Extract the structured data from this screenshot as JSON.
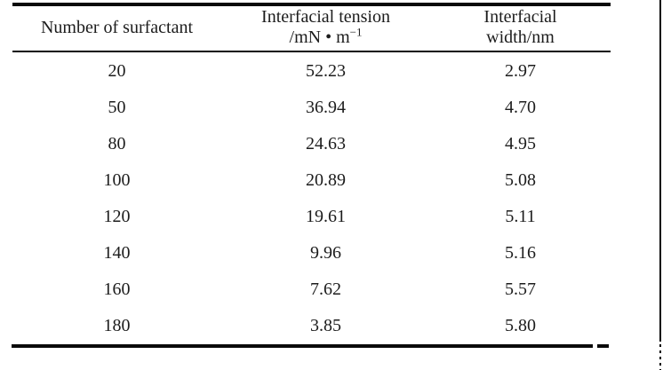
{
  "page": {
    "background": "#ffffff",
    "text_color": "#1c1c1c",
    "rule_color": "#0a0a0a"
  },
  "table": {
    "header": {
      "col1": "Number of surfactant",
      "col2_line1": "Interfacial tension",
      "col2_line2_prefix": "/mN • m",
      "col2_line2_superscript": "−1",
      "col3_line1": "Interfacial",
      "col3_line2": "width/nm"
    },
    "rows": [
      {
        "surfactant": "20",
        "tension": "52.23",
        "width": "2.97"
      },
      {
        "surfactant": "50",
        "tension": "36.94",
        "width": "4.70"
      },
      {
        "surfactant": "80",
        "tension": "24.63",
        "width": "4.95"
      },
      {
        "surfactant": "100",
        "tension": "20.89",
        "width": "5.08"
      },
      {
        "surfactant": "120",
        "tension": "19.61",
        "width": "5.11"
      },
      {
        "surfactant": "140",
        "tension": "9.96",
        "width": "5.16"
      },
      {
        "surfactant": "160",
        "tension": "7.62",
        "width": "5.57"
      },
      {
        "surfactant": "180",
        "tension": "3.85",
        "width": "5.80"
      }
    ]
  },
  "chart_data": {
    "type": "table",
    "columns": [
      "Number of surfactant",
      "Interfacial tension /mN·m−1",
      "Interfacial width/nm"
    ],
    "rows": [
      [
        20,
        52.23,
        2.97
      ],
      [
        50,
        36.94,
        4.7
      ],
      [
        80,
        24.63,
        4.95
      ],
      [
        100,
        20.89,
        5.08
      ],
      [
        120,
        19.61,
        5.11
      ],
      [
        140,
        9.96,
        5.16
      ],
      [
        160,
        7.62,
        5.57
      ],
      [
        180,
        3.85,
        5.8
      ]
    ]
  }
}
